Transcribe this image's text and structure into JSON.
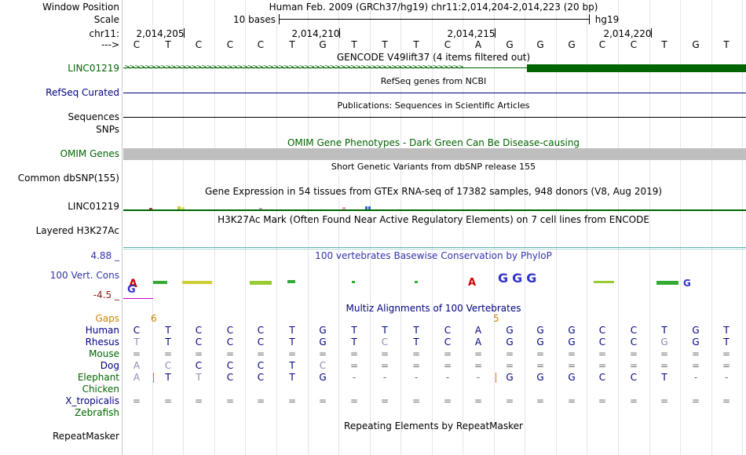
{
  "colors": {
    "link_green": "#006400",
    "link_blue": "#000080",
    "gaps_orange": "#c8820a",
    "gene_dark_green": "#006400",
    "omim_gray": "#bebebe",
    "h3k27ac_teal": "#5fb4b4",
    "conservation_blue": "#3333aa"
  },
  "labels": {
    "window_position": "Window Position",
    "scale": "Scale",
    "chrom": "chr11:",
    "strand": "--->",
    "linc": "LINC01219",
    "refseq": "RefSeq Curated",
    "sequences": "Sequences",
    "snps": "SNPs",
    "omim": "OMIM Genes",
    "common_dbsnp": "Common dbSNP(155)",
    "gtex_gene": "LINC01219",
    "h3k27ac": "Layered H3K27Ac",
    "cons_max": "4.88 _",
    "cons": "100 Vert. Cons",
    "cons_min": "-4.5 _",
    "gaps": "Gaps",
    "human": "Human",
    "rhesus": "Rhesus",
    "mouse": "Mouse",
    "dog": "Dog",
    "elephant": "Elephant",
    "chicken": "Chicken",
    "x_tropicalis": "X_tropicalis",
    "zebrafish": "Zebrafish",
    "repeatmasker": "RepeatMasker"
  },
  "header": {
    "position": "Human Feb. 2009 (GRCh37/hg19)   chr11:2,014,204-2,014,223 (20 bp)",
    "scale_text": "10 bases",
    "assembly": "hg19",
    "ticks": [
      "2,014,205",
      "2,014,210",
      "2,014,215",
      "2,014,220"
    ]
  },
  "track_titles": {
    "gencode": "GENCODE V49lift37 (4 items filtered out)",
    "refseq": "RefSeq genes from NCBI",
    "publications": "Publications: Sequences in Scientific Articles",
    "omim": "OMIM Gene Phenotypes - Dark Green Can Be Disease-causing",
    "dbsnp": "Short Genetic Variants from dbSNP release 155",
    "gtex": "Gene Expression in 54 tissues from GTEx RNA-seq of 17382 samples, 948 donors (V8, Aug 2019)",
    "h3k27ac": "H3K27Ac Mark (Often Found Near Active Regulatory Elements) on 7 cell lines from ENCODE",
    "phylop": "100 vertebrates Basewise Conservation by PhyloP",
    "multiz": "Multiz Alignments of 100 Vertebrates",
    "repeatmasker": "Repeating Elements by RepeatMasker"
  },
  "sequence": [
    "C",
    "T",
    "C",
    "C",
    "C",
    "T",
    "G",
    "T",
    "T",
    "T",
    "C",
    "A",
    "G",
    "G",
    "G",
    "C",
    "C",
    "T",
    "G",
    "T"
  ],
  "gaps": {
    "left": "6",
    "right": "5"
  },
  "alignment": {
    "rhesus": [
      "T",
      "T",
      "C",
      "C",
      "C",
      "T",
      "G",
      "T",
      "C",
      "T",
      "C",
      "A",
      "G",
      "G",
      "G",
      "C",
      "C",
      "G",
      "G",
      "T"
    ],
    "mouse": [
      "=",
      "=",
      "=",
      "=",
      "=",
      "=",
      "=",
      "=",
      "=",
      "=",
      "=",
      "=",
      "=",
      "=",
      "=",
      "=",
      "=",
      "=",
      "=",
      "="
    ],
    "dog": [
      "A",
      "C",
      "C",
      "C",
      "C",
      "T",
      "C",
      "=",
      "=",
      "=",
      "=",
      "=",
      "=",
      "=",
      "=",
      "=",
      "=",
      "=",
      "=",
      "="
    ],
    "elephant": [
      "A",
      "T",
      "T",
      "C",
      "C",
      "T",
      "G",
      "-",
      "-",
      "-",
      "-",
      "-",
      "G",
      "G",
      "G",
      "C",
      "C",
      "T",
      "-",
      "-"
    ],
    "x_tropicalis": [
      "=",
      "=",
      "=",
      "=",
      "=",
      "=",
      "=",
      "=",
      "=",
      "=",
      "=",
      "=",
      "=",
      "=",
      "=",
      "=",
      "=",
      "=",
      "=",
      "="
    ]
  }
}
